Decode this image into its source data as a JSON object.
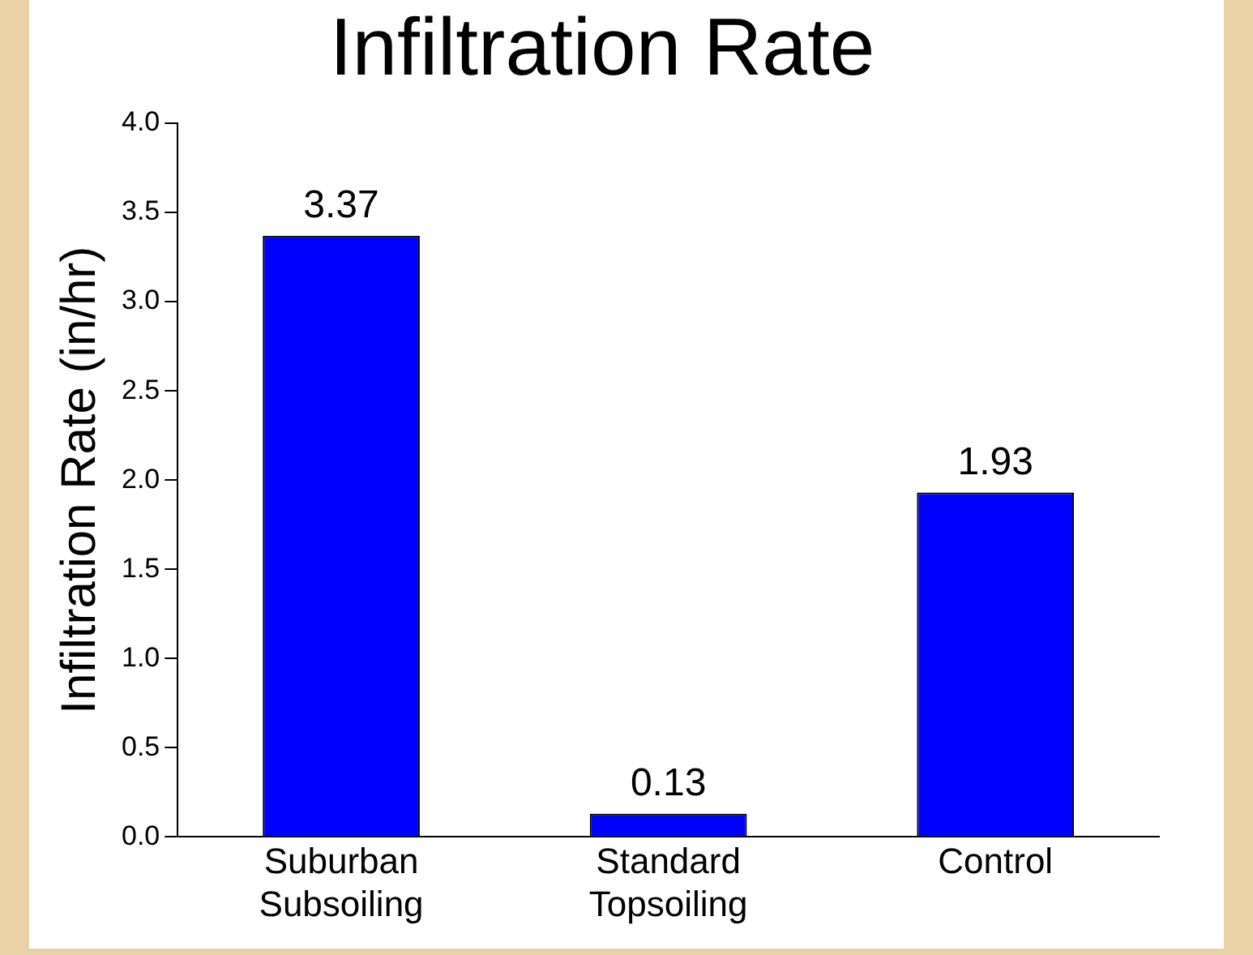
{
  "chart_data": {
    "type": "bar",
    "title": "Infiltration Rate",
    "ylabel": "Infiltration Rate (in/hr)",
    "categories": [
      "Suburban Subsoiling",
      "Standard Topsoiling",
      "Control"
    ],
    "values": [
      3.37,
      0.13,
      1.93
    ],
    "color": "#0000ff",
    "ylim": [
      0,
      4
    ],
    "yticks": [
      {
        "value": 0,
        "label": "0.0"
      },
      {
        "value": 0.5,
        "label": "0.5"
      },
      {
        "value": 1,
        "label": "1.0"
      },
      {
        "value": 1.5,
        "label": "1.5"
      },
      {
        "value": 2,
        "label": "2.0"
      },
      {
        "value": 2.5,
        "label": "2.5"
      },
      {
        "value": 3,
        "label": "3.0"
      },
      {
        "value": 3.5,
        "label": "3.5"
      },
      {
        "value": 4,
        "label": "4.0"
      }
    ],
    "grid": false,
    "legend": false,
    "data_labels": true
  }
}
